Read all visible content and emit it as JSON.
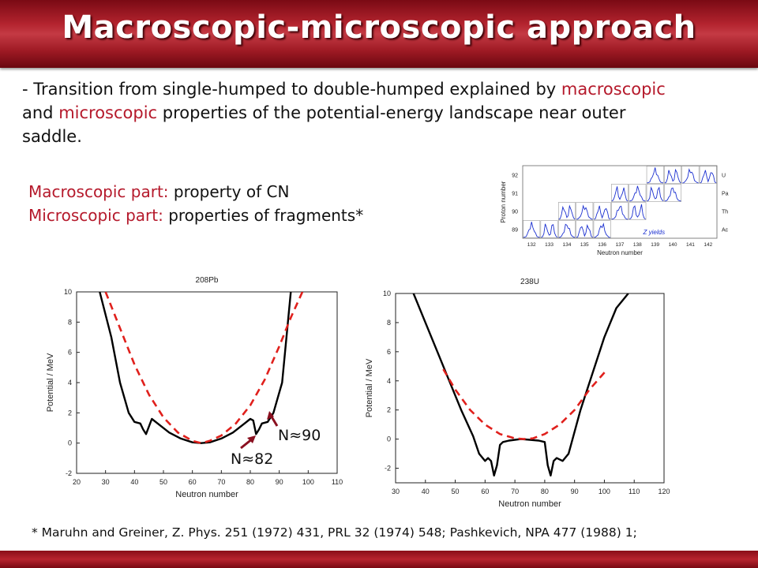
{
  "title": "Macroscopic-microscopic approach",
  "bullet": {
    "dash": "- ",
    "t1": "Transition from single-humped to double-humped explained by ",
    "red1": "macroscopic",
    "t2": " and ",
    "red2": "microscopic",
    "t3": " properties of the potential-energy landscape near outer saddle."
  },
  "macro_line": {
    "label": "Macroscopic part:",
    "value": " property of CN"
  },
  "micro_line": {
    "label": "Microscopic part:",
    "value": " properties of fragments*"
  },
  "annotations": {
    "n90": "N≈90",
    "n82": "N≈82"
  },
  "reference": "* Maruhn and Greiner, Z. Phys. 251 (1972) 431, PRL 32 (1974) 548; Pashkevich, NPA 477 (1988) 1;",
  "colors": {
    "accent": "#b5192b",
    "macroscopic_curve": "#e0201c",
    "total_curve": "#000000",
    "yield_curve": "#1a2fd0"
  },
  "chart_data": [
    {
      "type": "line",
      "title": "208Pb",
      "xlabel": "Neutron number",
      "ylabel": "Potential / MeV",
      "xlim": [
        20,
        110
      ],
      "ylim": [
        -2,
        10
      ],
      "xticks": [
        "20",
        "30",
        "40",
        "50",
        "60",
        "70",
        "80",
        "90",
        "100",
        "110"
      ],
      "yticks": [
        "-2",
        "0",
        "2",
        "4",
        "6",
        "8",
        "10"
      ],
      "series": [
        {
          "style": "solid",
          "x": [
            28,
            32,
            35,
            38,
            40,
            42,
            43,
            44,
            46,
            48,
            52,
            56,
            60,
            63,
            66,
            70,
            74,
            78,
            80,
            81,
            82,
            83,
            84,
            86,
            88,
            91,
            94
          ],
          "y": [
            10,
            7,
            4,
            2,
            1.4,
            1.3,
            0.9,
            0.6,
            1.6,
            1.3,
            0.7,
            0.3,
            0.05,
            0,
            0.05,
            0.3,
            0.7,
            1.3,
            1.6,
            1.5,
            0.6,
            0.9,
            1.3,
            1.4,
            2,
            4,
            10
          ]
        },
        {
          "style": "dashed",
          "x": [
            30,
            35,
            40,
            45,
            50,
            55,
            60,
            63,
            66,
            70,
            75,
            80,
            85,
            90,
            94,
            98
          ],
          "y": [
            10,
            7.6,
            5.2,
            3.2,
            1.7,
            0.7,
            0.15,
            0,
            0.15,
            0.5,
            1.3,
            2.5,
            4.2,
            6.4,
            8.3,
            10
          ]
        }
      ]
    },
    {
      "type": "line",
      "title": "238U",
      "xlabel": "Neutron number",
      "ylabel": "Potential / MeV",
      "xlim": [
        30,
        120
      ],
      "ylim": [
        -3,
        10
      ],
      "xticks": [
        "30",
        "40",
        "50",
        "60",
        "70",
        "80",
        "90",
        "100",
        "110",
        "120"
      ],
      "yticks": [
        "-2",
        "0",
        "2",
        "4",
        "6",
        "8",
        "10"
      ],
      "series": [
        {
          "style": "solid",
          "x": [
            36,
            40,
            44,
            48,
            52,
            56,
            58,
            60,
            61,
            62,
            63,
            64,
            65,
            66,
            68,
            70,
            72,
            75,
            78,
            80,
            81,
            82,
            83,
            84,
            86,
            88,
            92,
            96,
            100,
            104,
            108
          ],
          "y": [
            10,
            8,
            6,
            4,
            2,
            0.2,
            -1,
            -1.5,
            -1.3,
            -1.5,
            -2.5,
            -1.8,
            -0.4,
            -0.2,
            -0.1,
            -0.05,
            0,
            -0.05,
            -0.1,
            -0.2,
            -1.8,
            -2.5,
            -1.5,
            -1.3,
            -1.5,
            -1,
            2,
            4.5,
            7,
            9,
            10
          ]
        },
        {
          "style": "dashed",
          "x": [
            46,
            50,
            55,
            60,
            65,
            70,
            73,
            76,
            80,
            85,
            90,
            95,
            101
          ],
          "y": [
            4.8,
            3.4,
            2,
            1,
            0.35,
            0.05,
            0,
            0.05,
            0.35,
            1,
            2,
            3.4,
            4.8
          ]
        }
      ]
    },
    {
      "type": "line",
      "title": "Z yields",
      "xlabel": "Neutron number",
      "ylabel": "Proton number",
      "xticks": [
        "132",
        "133",
        "134",
        "135",
        "136",
        "137",
        "138",
        "139",
        "140",
        "141",
        "142"
      ],
      "row_labels": [
        "92",
        "91",
        "90",
        "89"
      ],
      "right_labels": [
        "U",
        "Pa",
        "Th",
        "Ac"
      ]
    }
  ]
}
